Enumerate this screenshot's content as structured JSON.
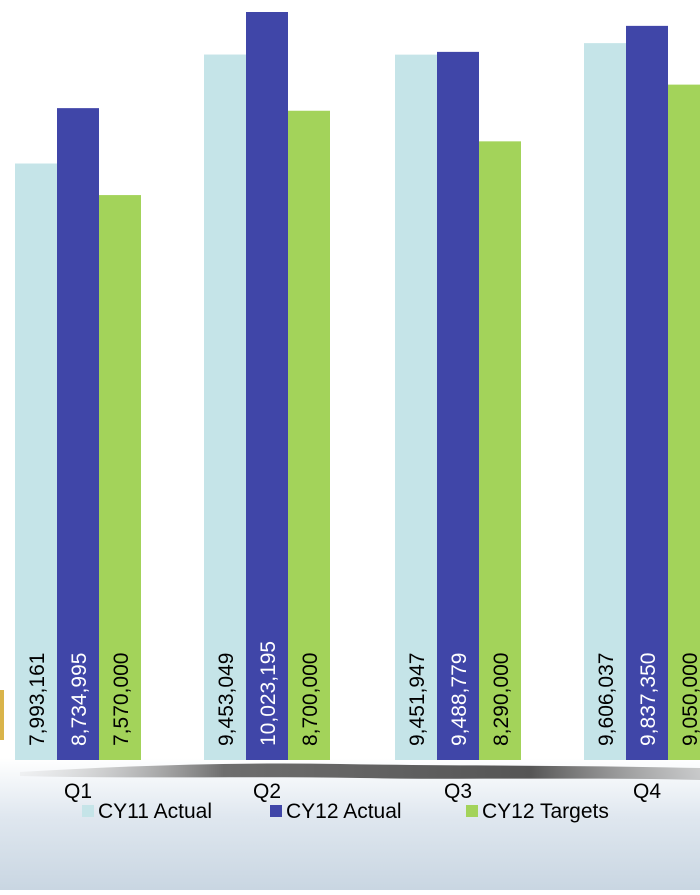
{
  "chart_data": {
    "type": "bar",
    "categories": [
      "Q1",
      "Q2",
      "Q3",
      "Q4"
    ],
    "series": [
      {
        "name": "CY11 Actual",
        "color": "#c5e4e8",
        "values": [
          7993161,
          9453049,
          9451947,
          9606037
        ],
        "labels": [
          "7,993,161",
          "9,453,049",
          "9,451,947",
          "9,606,037"
        ],
        "label_color": "#000000"
      },
      {
        "name": "CY12 Actual",
        "color": "#4046a8",
        "values": [
          8734995,
          10023195,
          9488779,
          9837350
        ],
        "labels": [
          "8,734,995",
          "10,023,195",
          "9,488,779",
          "9,837,350"
        ],
        "label_color": "#ffffff"
      },
      {
        "name": "CY12 Targets",
        "color": "#a3d35a",
        "values": [
          7570000,
          8700000,
          8290000,
          9050000
        ],
        "labels": [
          "7,570,000",
          "8,700,000",
          "8,290,000",
          "9,050,000"
        ],
        "label_color": "#000000"
      }
    ],
    "title": "",
    "xlabel": "",
    "ylabel": "",
    "legend_position": "bottom",
    "grid": false
  }
}
